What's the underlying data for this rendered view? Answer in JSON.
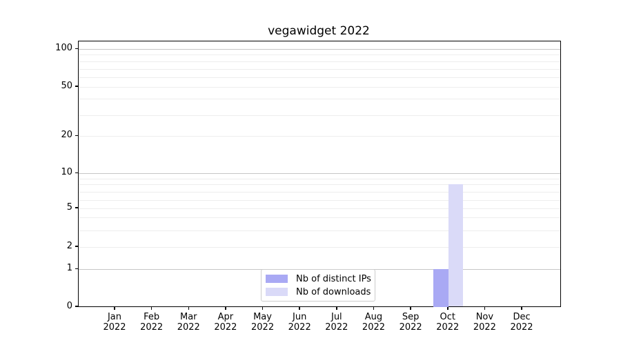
{
  "title": "vegawidget 2022",
  "colors": {
    "distinct_ips": "#a9a9f4",
    "downloads": "#dadaf8",
    "grid_major": "#c6c6c6",
    "grid_minor": "#ededed",
    "axis": "#000000",
    "legend_border": "#cccccc",
    "text": "#000000"
  },
  "legend": {
    "position": "lower center",
    "items": [
      {
        "label": "Nb of distinct IPs",
        "color_key": "distinct_ips"
      },
      {
        "label": "Nb of downloads",
        "color_key": "downloads"
      }
    ]
  },
  "chart_data": {
    "type": "bar",
    "title": "vegawidget 2022",
    "categories": [
      "Jan 2022",
      "Feb 2022",
      "Mar 2022",
      "Apr 2022",
      "May 2022",
      "Jun 2022",
      "Jul 2022",
      "Aug 2022",
      "Sep 2022",
      "Oct 2022",
      "Nov 2022",
      "Dec 2022"
    ],
    "x_tick_line1": [
      "Jan",
      "Feb",
      "Mar",
      "Apr",
      "May",
      "Jun",
      "Jul",
      "Aug",
      "Sep",
      "Oct",
      "Nov",
      "Dec"
    ],
    "x_tick_line2": [
      "2022",
      "2022",
      "2022",
      "2022",
      "2022",
      "2022",
      "2022",
      "2022",
      "2022",
      "2022",
      "2022",
      "2022"
    ],
    "series": [
      {
        "name": "Nb of distinct IPs",
        "values": [
          0,
          0,
          0,
          0,
          0,
          0,
          0,
          0,
          0,
          1,
          0,
          0
        ]
      },
      {
        "name": "Nb of downloads",
        "values": [
          0,
          0,
          0,
          0,
          0,
          0,
          0,
          0,
          0,
          8,
          0,
          0
        ]
      }
    ],
    "xlabel": "",
    "ylabel": "",
    "yscale": "symlog",
    "y_ticks": [
      0,
      1,
      2,
      5,
      10,
      20,
      50,
      100
    ],
    "y_major_gridlines": [
      1,
      10,
      100
    ],
    "y_minor_gridlines": [
      2,
      3,
      4,
      5,
      6,
      7,
      8,
      9,
      20,
      30,
      40,
      50,
      60,
      70,
      80,
      90
    ],
    "ylim": [
      0,
      120
    ],
    "grid": true,
    "legend_position": "lower center"
  }
}
